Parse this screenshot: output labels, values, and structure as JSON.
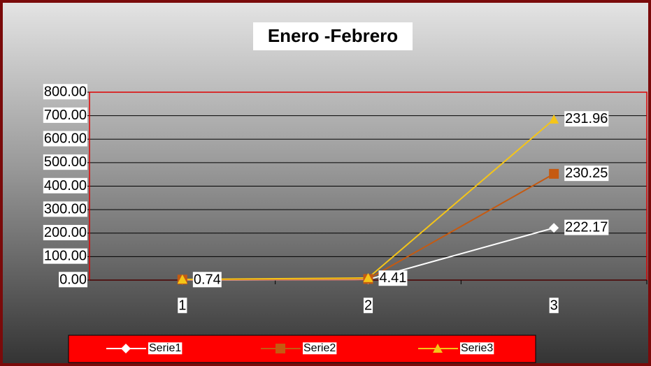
{
  "chart_data": {
    "type": "line",
    "stacked": true,
    "title": "Enero -Febrero",
    "categories": [
      "1",
      "2",
      "3"
    ],
    "series": [
      {
        "name": "Serie1",
        "color": "#ffffff",
        "marker": "diamond",
        "values": [
          1.2,
          2.5,
          222.17
        ]
      },
      {
        "name": "Serie2",
        "color": "#c55a11",
        "marker": "square",
        "values": [
          1.0,
          2.2,
          230.25
        ]
      },
      {
        "name": "Serie3",
        "color": "#f5c518",
        "marker": "triangle",
        "values": [
          0.74,
          4.41,
          231.96
        ]
      }
    ],
    "ylim": [
      0,
      800
    ],
    "yticks": [
      {
        "value": 0,
        "label": "0.00"
      },
      {
        "value": 100,
        "label": "100.00"
      },
      {
        "value": 200,
        "label": "200.00"
      },
      {
        "value": 300,
        "label": "300.00"
      },
      {
        "value": 400,
        "label": "400.00"
      },
      {
        "value": 500,
        "label": "500.00"
      },
      {
        "value": 600,
        "label": "600.00"
      },
      {
        "value": 700,
        "label": "700.00"
      },
      {
        "value": 800,
        "label": "800.00"
      }
    ],
    "grid": true,
    "legend": "bottom"
  }
}
